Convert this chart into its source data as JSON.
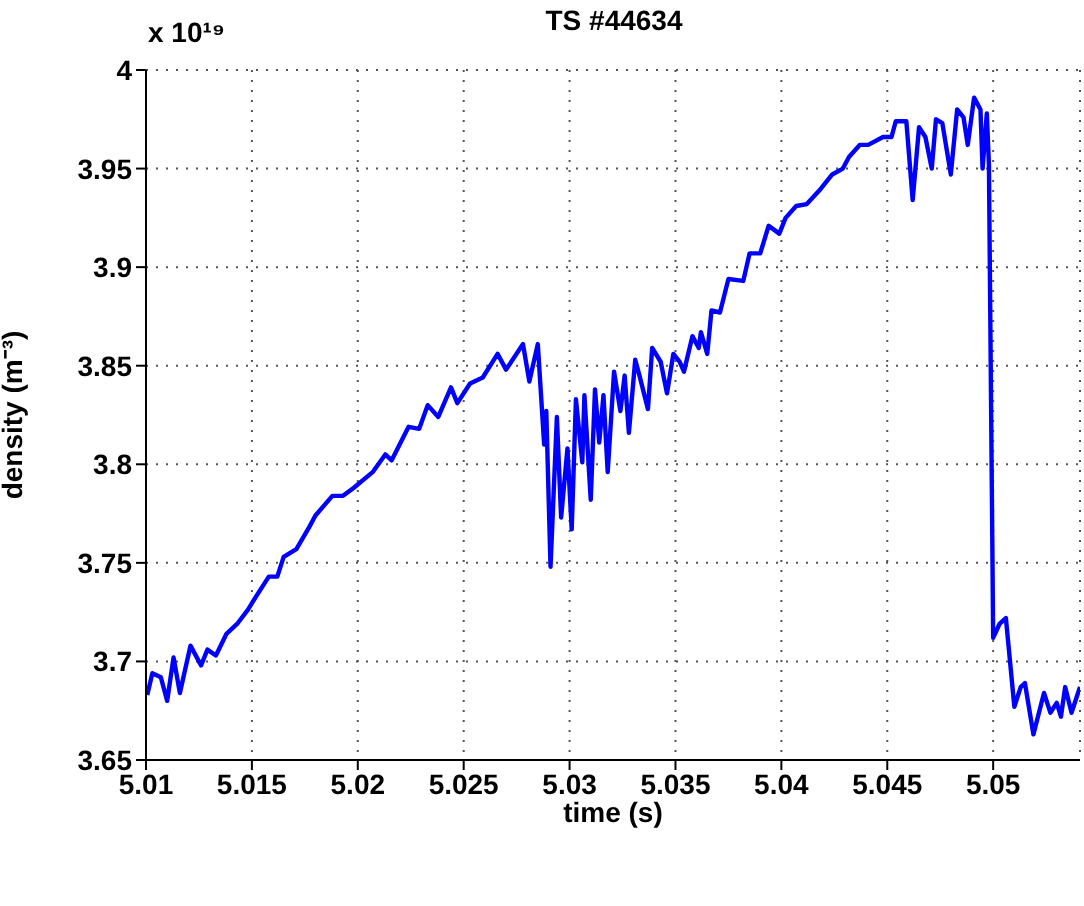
{
  "chart_data": {
    "type": "line",
    "title": "TS #44634",
    "xlabel": "time (s)",
    "ylabel": "density (m⁻³)",
    "annotations": [
      "x 10¹⁹"
    ],
    "x": [
      5.01006,
      5.0103,
      5.0107,
      5.011,
      5.0113,
      5.0116,
      5.0121,
      5.0126,
      5.0129,
      5.0133,
      5.0138,
      5.0143,
      5.0148,
      5.0152,
      5.0158,
      5.0162,
      5.0165,
      5.0171,
      5.0177,
      5.018,
      5.0188,
      5.0193,
      5.0198,
      5.0207,
      5.0213,
      5.0216,
      5.0224,
      5.0229,
      5.0233,
      5.0238,
      5.0244,
      5.0247,
      5.0253,
      5.0259,
      5.0266,
      5.027,
      5.0278,
      5.0281,
      5.0285,
      5.0288,
      5.0289,
      5.0291,
      5.0294,
      5.0296,
      5.0299,
      5.0301,
      5.0303,
      5.0306,
      5.0307,
      5.031,
      5.0312,
      5.0314,
      5.0316,
      5.0318,
      5.0321,
      5.0324,
      5.0326,
      5.0328,
      5.0331,
      5.0333,
      5.0337,
      5.0339,
      5.0343,
      5.0346,
      5.0349,
      5.0352,
      5.0354,
      5.0358,
      5.0361,
      5.0362,
      5.0365,
      5.0367,
      5.0371,
      5.0375,
      5.0382,
      5.0385,
      5.039,
      5.0394,
      5.0399,
      5.0402,
      5.0407,
      5.0412,
      5.0418,
      5.0424,
      5.0429,
      5.0432,
      5.0437,
      5.0441,
      5.0448,
      5.0452,
      5.0454,
      5.0459,
      5.0462,
      5.0465,
      5.0468,
      5.0471,
      5.0473,
      5.0476,
      5.048,
      5.0483,
      5.0486,
      5.0488,
      5.0491,
      5.0494,
      5.0495,
      5.0497,
      5.0498,
      5.05,
      5.0503,
      5.0506,
      5.051,
      5.0513,
      5.0515,
      5.0519,
      5.0524,
      5.0527,
      5.053,
      5.0532,
      5.0534,
      5.0537,
      5.0541
    ],
    "series": [
      {
        "color": "#0000ff",
        "values": [
          3.683,
          3.694,
          3.692,
          3.68,
          3.702,
          3.684,
          3.708,
          3.698,
          3.706,
          3.703,
          3.714,
          3.719,
          3.726,
          3.733,
          3.743,
          3.743,
          3.753,
          3.757,
          3.768,
          3.774,
          3.784,
          3.784,
          3.788,
          3.796,
          3.805,
          3.802,
          3.819,
          3.818,
          3.83,
          3.824,
          3.839,
          3.831,
          3.841,
          3.844,
          3.856,
          3.848,
          3.861,
          3.842,
          3.861,
          3.81,
          3.827,
          3.748,
          3.824,
          3.773,
          3.808,
          3.767,
          3.833,
          3.801,
          3.835,
          3.782,
          3.838,
          3.811,
          3.835,
          3.796,
          3.847,
          3.827,
          3.845,
          3.816,
          3.853,
          3.845,
          3.828,
          3.859,
          3.852,
          3.836,
          3.856,
          3.852,
          3.847,
          3.865,
          3.859,
          3.867,
          3.856,
          3.878,
          3.877,
          3.894,
          3.893,
          3.907,
          3.907,
          3.921,
          3.917,
          3.925,
          3.931,
          3.932,
          3.939,
          3.947,
          3.95,
          3.956,
          3.962,
          3.962,
          3.966,
          3.966,
          3.974,
          3.974,
          3.934,
          3.971,
          3.966,
          3.95,
          3.975,
          3.973,
          3.947,
          3.98,
          3.976,
          3.962,
          3.986,
          3.98,
          3.95,
          3.978,
          3.952,
          3.712,
          3.719,
          3.722,
          3.677,
          3.687,
          3.689,
          3.663,
          3.684,
          3.674,
          3.679,
          3.672,
          3.687,
          3.674,
          3.687
        ]
      }
    ],
    "xlim": [
      5.01,
      5.0541
    ],
    "ylim": [
      3.65,
      4
    ],
    "xticks": [
      5.01,
      5.015,
      5.02,
      5.025,
      5.03,
      5.035,
      5.04,
      5.045,
      5.05
    ],
    "yticks": [
      3.65,
      3.7,
      3.75,
      3.8,
      3.85,
      3.9,
      3.95,
      4
    ],
    "grid": true
  }
}
